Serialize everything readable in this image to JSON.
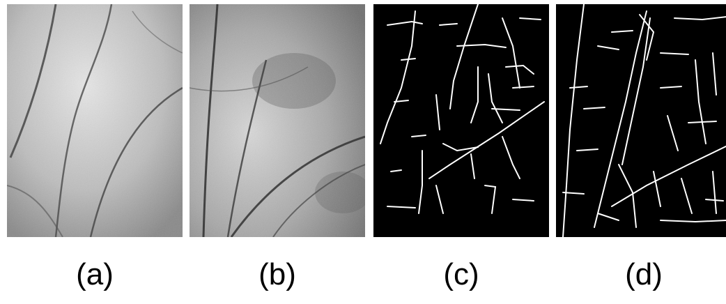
{
  "figure": {
    "panels": [
      {
        "label": "(a)",
        "kind": "grayscale-palmprint"
      },
      {
        "label": "(b)",
        "kind": "grayscale-palmprint"
      },
      {
        "label": "(c)",
        "kind": "binary-line-extraction"
      },
      {
        "label": "(d)",
        "kind": "binary-line-extraction"
      }
    ],
    "colors": {
      "background": "#ffffff",
      "binary_bg": "#000000",
      "binary_line": "#ffffff",
      "palm_light": "#cfcfcf",
      "palm_dark": "#3a3a3a"
    }
  }
}
